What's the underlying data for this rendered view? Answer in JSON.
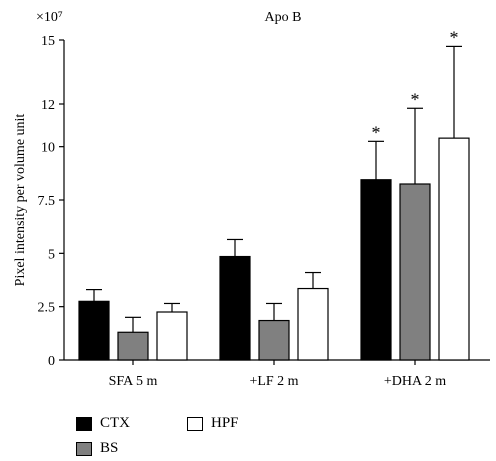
{
  "chart_data": {
    "type": "bar",
    "title": "Apo B",
    "y_multiplier": "×10⁷",
    "ylabel": "Pixel intensity per volume unit",
    "xlabel": "",
    "ylim": [
      0,
      15
    ],
    "yticks": [
      "0",
      "2.5",
      "5",
      "7.5",
      "10",
      "12",
      "15"
    ],
    "ytick_values": [
      0,
      2.5,
      5,
      7.5,
      10,
      12,
      15
    ],
    "categories": [
      "SFA 5 m",
      "+LF 2 m",
      "+DHA 2 m"
    ],
    "series": [
      {
        "name": "CTX",
        "color": "#000000",
        "values": [
          2.75,
          4.85,
          8.45
        ],
        "errors": [
          0.55,
          0.8,
          1.8
        ]
      },
      {
        "name": "BS",
        "color": "#808080",
        "values": [
          1.3,
          1.85,
          8.25
        ],
        "errors": [
          0.7,
          0.8,
          3.55
        ]
      },
      {
        "name": "HPF",
        "color": "#ffffff",
        "values": [
          2.25,
          3.35,
          10.4
        ],
        "errors": [
          0.4,
          0.75,
          4.3
        ]
      }
    ],
    "annotations": [
      {
        "category": "+DHA 2 m",
        "series": "CTX",
        "text": "*"
      },
      {
        "category": "+DHA 2 m",
        "series": "BS",
        "text": "*"
      },
      {
        "category": "+DHA 2 m",
        "series": "HPF",
        "text": "*"
      }
    ],
    "grid": false,
    "legend_position": "bottom-left"
  }
}
